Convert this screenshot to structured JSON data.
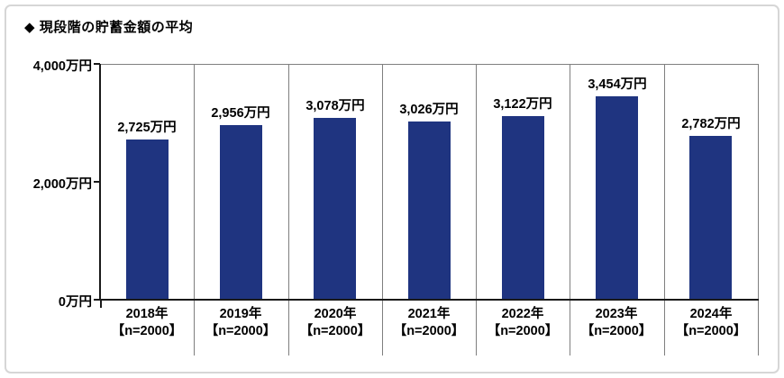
{
  "panel": {
    "background": "#ffffff",
    "frame_border_color": "#d6d6d6"
  },
  "chart_data": {
    "type": "bar",
    "title": "◆ 現段階の貯蓄金額の平均",
    "categories": [
      "2018年",
      "2019年",
      "2020年",
      "2021年",
      "2022年",
      "2023年",
      "2024年"
    ],
    "category_sublabels": [
      "【n=2000】",
      "【n=2000】",
      "【n=2000】",
      "【n=2000】",
      "【n=2000】",
      "【n=2000】",
      "【n=2000】"
    ],
    "values": [
      2725,
      2956,
      3078,
      3026,
      3122,
      3454,
      2782
    ],
    "value_labels": [
      "2,725万円",
      "2,956万円",
      "3,078万円",
      "3,026万円",
      "3,122万円",
      "3,454万円",
      "2,782万円"
    ],
    "unit": "万円",
    "ylim": [
      0,
      4000
    ],
    "yticks": [
      {
        "value": 4000,
        "label": "4,000万円"
      },
      {
        "value": 2000,
        "label": "2,000万円"
      },
      {
        "value": 0,
        "label": "0万円"
      }
    ],
    "bar_color": "#1f3480",
    "axis_color": "#1a1a1a",
    "grid_color": "#7f7f7f",
    "legend": "none",
    "grid": "vertical-category-separators"
  }
}
